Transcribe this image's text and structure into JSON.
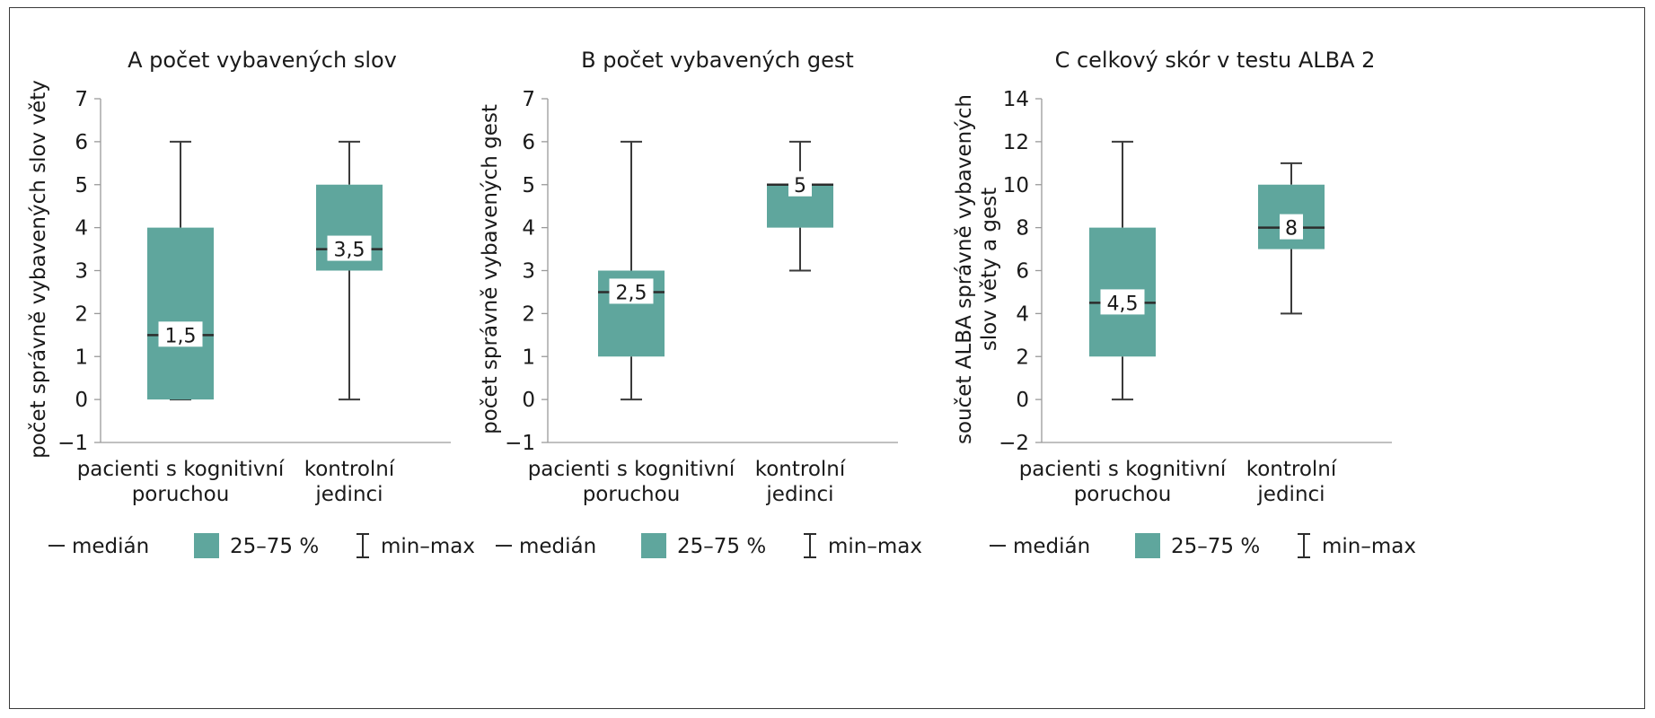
{
  "colors": {
    "box": "#5fa69d",
    "whisker": "#3a3a3a",
    "axis": "#9a9a9a",
    "border": "#3a3a3a"
  },
  "legend": {
    "median_label": "medián",
    "iqr_label": "25–75 %",
    "range_label": "min–max"
  },
  "chart_data": [
    {
      "type": "boxplot",
      "title": "A počet vybavených slov",
      "ylabel": "počet správně vybavených slov věty",
      "ylim": [
        -1,
        7
      ],
      "yticks": [
        "−1",
        "0",
        "1",
        "2",
        "3",
        "4",
        "5",
        "6",
        "7"
      ],
      "categories": [
        {
          "lines": [
            "pacienti s kognitivní",
            "poruchou"
          ],
          "min": 0,
          "q1": 0,
          "median": 1.5,
          "q3": 4,
          "max": 6,
          "median_label": "1,5"
        },
        {
          "lines": [
            "kontrolní",
            "jedinci"
          ],
          "min": 0,
          "q1": 3,
          "median": 3.5,
          "q3": 5,
          "max": 6,
          "median_label": "3,5"
        }
      ]
    },
    {
      "type": "boxplot",
      "title": "B počet vybavených gest",
      "ylabel": "počet správně vybavených gest",
      "ylim": [
        -1,
        7
      ],
      "yticks": [
        "−1",
        "0",
        "1",
        "2",
        "3",
        "4",
        "5",
        "6",
        "7"
      ],
      "categories": [
        {
          "lines": [
            "pacienti s kognitivní",
            "poruchou"
          ],
          "min": 0,
          "q1": 1,
          "median": 2.5,
          "q3": 3,
          "max": 6,
          "median_label": "2,5"
        },
        {
          "lines": [
            "kontrolní",
            "jedinci"
          ],
          "min": 3,
          "q1": 4,
          "median": 5,
          "q3": 5,
          "max": 6,
          "median_label": "5"
        }
      ]
    },
    {
      "type": "boxplot",
      "title": "C celkový skór v testu ALBA 2",
      "ylabel": [
        "součet ALBA správně vybavených",
        "slov věty a gest"
      ],
      "ylim": [
        -2,
        14
      ],
      "yticks": [
        "−2",
        "0",
        "2",
        "4",
        "6",
        "8",
        "10",
        "12",
        "14"
      ],
      "categories": [
        {
          "lines": [
            "pacienti s kognitivní",
            "poruchou"
          ],
          "min": 0,
          "q1": 2,
          "median": 4.5,
          "q3": 8,
          "max": 12,
          "median_label": "4,5"
        },
        {
          "lines": [
            "kontrolní",
            "jedinci"
          ],
          "min": 4,
          "q1": 7,
          "median": 8,
          "q3": 10,
          "max": 11,
          "median_label": "8"
        }
      ]
    }
  ]
}
